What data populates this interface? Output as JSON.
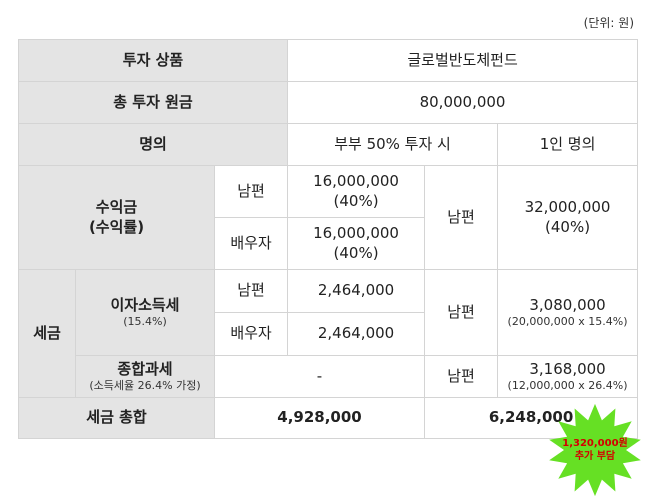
{
  "unit_note": "(단위: 원)",
  "rows": {
    "product": {
      "label": "투자 상품",
      "value": "글로벌반도체펀드"
    },
    "principal": {
      "label": "총 투자 원금",
      "value": "80,000,000"
    },
    "owner": {
      "label": "명의",
      "couple": "부부 50% 투자 시",
      "single": "1인 명의"
    },
    "profit": {
      "label": "수익금",
      "label_sub": "(수익률)",
      "husband": "남편",
      "spouse": "배우자",
      "couple_husband_amount": "16,000,000",
      "couple_husband_rate": "(40%)",
      "couple_spouse_amount": "16,000,000",
      "couple_spouse_rate": "(40%)",
      "single_label": "남편",
      "single_amount": "32,000,000",
      "single_rate": "(40%)"
    },
    "tax": {
      "label": "세금",
      "interest": {
        "label": "이자소득세",
        "sub": "(15.4%)",
        "husband": "남편",
        "spouse": "배우자",
        "couple_husband": "2,464,000",
        "couple_spouse": "2,464,000",
        "single_label": "남편",
        "single_amount": "3,080,000",
        "single_calc": "(20,000,000 x 15.4%)"
      },
      "comprehensive": {
        "label": "종합과세",
        "sub": "(소득세율 26.4% 가정)",
        "couple": "-",
        "single_label": "남편",
        "single_amount": "3,168,000",
        "single_calc": "(12,000,000 x 26.4%)"
      }
    },
    "total": {
      "label": "세금 총합",
      "couple": "4,928,000",
      "single": "6,248,000"
    }
  },
  "callout": {
    "line1": "1,320,000원",
    "line2": "추가 부담",
    "fill": "#66e024",
    "text_color": "#d40000"
  }
}
